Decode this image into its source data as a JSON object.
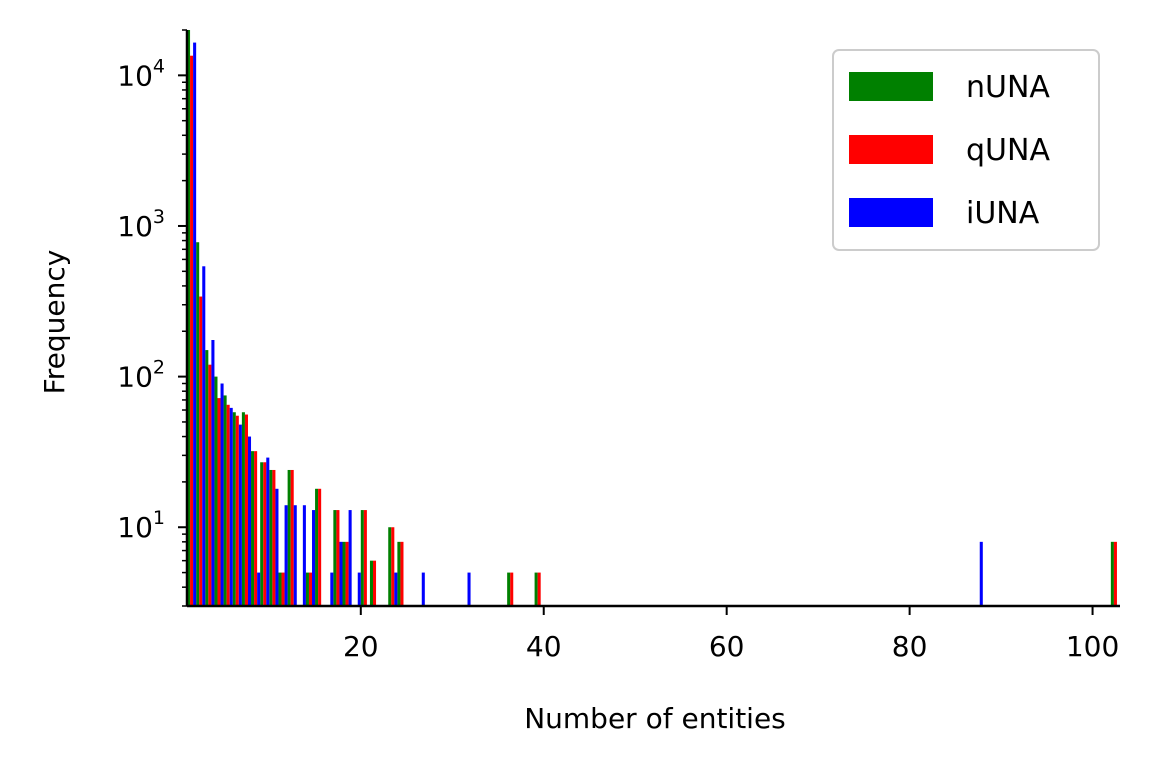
{
  "chart_data": {
    "type": "bar",
    "xlabel": "Number of entities",
    "ylabel": "Frequency",
    "yscale": "log",
    "xlim": [
      1,
      103
    ],
    "ylim": [
      3,
      20000
    ],
    "x_ticks": [
      20,
      40,
      60,
      80,
      100
    ],
    "y_ticks": [
      {
        "base": "10",
        "exp": "1",
        "value": 10
      },
      {
        "base": "10",
        "exp": "2",
        "value": 100
      },
      {
        "base": "10",
        "exp": "3",
        "value": 1000
      },
      {
        "base": "10",
        "exp": "4",
        "value": 10000
      }
    ],
    "legend_position": "top-right",
    "grid": false,
    "series": [
      {
        "name": "nUNA",
        "color": "#008000",
        "points": [
          {
            "x": 1,
            "y": 20000
          },
          {
            "x": 2,
            "y": 780
          },
          {
            "x": 3,
            "y": 150
          },
          {
            "x": 4,
            "y": 100
          },
          {
            "x": 5,
            "y": 75
          },
          {
            "x": 6,
            "y": 58
          },
          {
            "x": 7,
            "y": 58
          },
          {
            "x": 8,
            "y": 32
          },
          {
            "x": 9,
            "y": 27
          },
          {
            "x": 10,
            "y": 24
          },
          {
            "x": 11,
            "y": 5
          },
          {
            "x": 12,
            "y": 24
          },
          {
            "x": 14,
            "y": 5
          },
          {
            "x": 15,
            "y": 18
          },
          {
            "x": 17,
            "y": 13
          },
          {
            "x": 18,
            "y": 8
          },
          {
            "x": 20,
            "y": 13
          },
          {
            "x": 21,
            "y": 6
          },
          {
            "x": 23,
            "y": 10
          },
          {
            "x": 24,
            "y": 8
          },
          {
            "x": 36,
            "y": 5
          },
          {
            "x": 39,
            "y": 5
          },
          {
            "x": 102,
            "y": 8
          }
        ]
      },
      {
        "name": "qUNA",
        "color": "#ff0000",
        "points": [
          {
            "x": 1,
            "y": 13500
          },
          {
            "x": 2,
            "y": 340
          },
          {
            "x": 3,
            "y": 120
          },
          {
            "x": 4,
            "y": 72
          },
          {
            "x": 5,
            "y": 65
          },
          {
            "x": 6,
            "y": 55
          },
          {
            "x": 7,
            "y": 56
          },
          {
            "x": 8,
            "y": 32
          },
          {
            "x": 9,
            "y": 27
          },
          {
            "x": 10,
            "y": 24
          },
          {
            "x": 11,
            "y": 5
          },
          {
            "x": 12,
            "y": 24
          },
          {
            "x": 14,
            "y": 5
          },
          {
            "x": 15,
            "y": 18
          },
          {
            "x": 17,
            "y": 13
          },
          {
            "x": 18,
            "y": 8
          },
          {
            "x": 20,
            "y": 13
          },
          {
            "x": 21,
            "y": 6
          },
          {
            "x": 23,
            "y": 10
          },
          {
            "x": 24,
            "y": 8
          },
          {
            "x": 36,
            "y": 5
          },
          {
            "x": 39,
            "y": 5
          },
          {
            "x": 102,
            "y": 8
          }
        ]
      },
      {
        "name": "iUNA",
        "color": "#0000ff",
        "points": [
          {
            "x": 1,
            "y": 16500
          },
          {
            "x": 2,
            "y": 540
          },
          {
            "x": 3,
            "y": 175
          },
          {
            "x": 4,
            "y": 90
          },
          {
            "x": 5,
            "y": 62
          },
          {
            "x": 6,
            "y": 48
          },
          {
            "x": 7,
            "y": 40
          },
          {
            "x": 8,
            "y": 5
          },
          {
            "x": 9,
            "y": 29
          },
          {
            "x": 10,
            "y": 18
          },
          {
            "x": 11,
            "y": 14
          },
          {
            "x": 12,
            "y": 14
          },
          {
            "x": 13,
            "y": 14
          },
          {
            "x": 14,
            "y": 13
          },
          {
            "x": 16,
            "y": 5
          },
          {
            "x": 17,
            "y": 8
          },
          {
            "x": 18,
            "y": 13
          },
          {
            "x": 19,
            "y": 5
          },
          {
            "x": 23,
            "y": 5
          },
          {
            "x": 26,
            "y": 5
          },
          {
            "x": 31,
            "y": 5
          },
          {
            "x": 87,
            "y": 8
          }
        ]
      }
    ]
  }
}
